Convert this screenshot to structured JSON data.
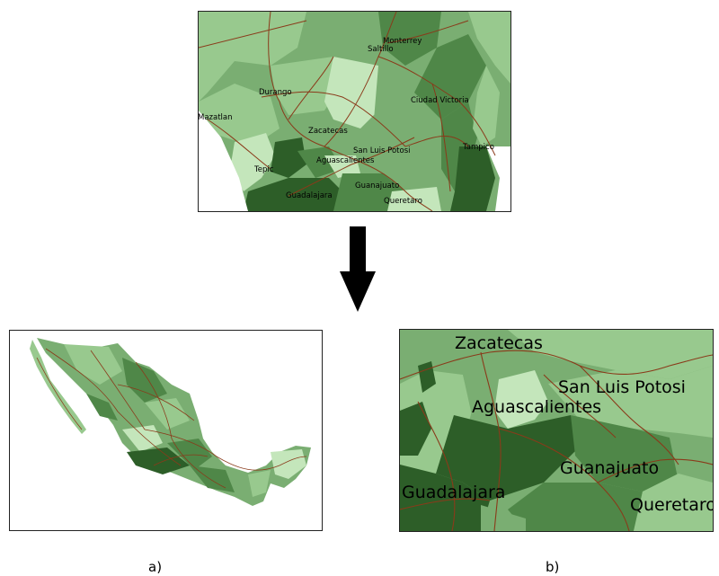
{
  "top_map": {
    "cities": [
      {
        "name": "Monterrey"
      },
      {
        "name": "Saltillo"
      },
      {
        "name": "Durango"
      },
      {
        "name": "Ciudad Victoria"
      },
      {
        "name": "Mazatlan"
      },
      {
        "name": "Zacatecas"
      },
      {
        "name": "San Luis Potosi"
      },
      {
        "name": "Tampico"
      },
      {
        "name": "Aguascalientes"
      },
      {
        "name": "Tepic"
      },
      {
        "name": "Guanajuato"
      },
      {
        "name": "Guadalajara"
      },
      {
        "name": "Queretaro"
      }
    ]
  },
  "zoom_map": {
    "cities": [
      {
        "name": "Zacatecas"
      },
      {
        "name": "San Luis Potosi"
      },
      {
        "name": "Aguascalientes"
      },
      {
        "name": "Guanajuato"
      },
      {
        "name": "Guadalajara"
      },
      {
        "name": "Queretaro"
      }
    ]
  },
  "captions": {
    "a": "a)",
    "b": "b)"
  },
  "colors": {
    "lightest": "#c4e6bb",
    "light": "#98c98e",
    "medium": "#7aae72",
    "dark": "#4f8748",
    "darkest": "#2d5e28",
    "roads": "#8a3a1a",
    "arrow": "#000000"
  }
}
